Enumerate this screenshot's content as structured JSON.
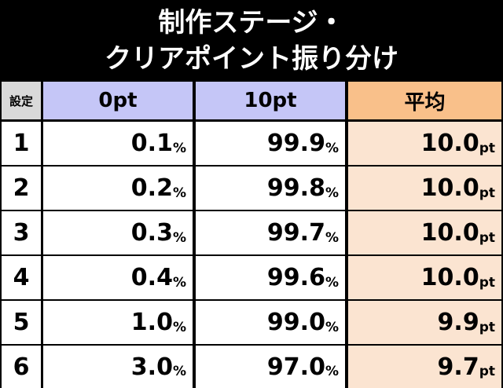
{
  "title": {
    "line1": "制作ステージ・",
    "line2": "クリアポイント振り分け"
  },
  "table": {
    "headers": {
      "setting": "設定",
      "pt0": "0pt",
      "pt10": "10pt",
      "average": "平均"
    },
    "rows": [
      {
        "setting": "1",
        "pt0": "0.1",
        "pt0_unit": "%",
        "pt10": "99.9",
        "pt10_unit": "%",
        "average": "10.0",
        "average_unit": "pt"
      },
      {
        "setting": "2",
        "pt0": "0.2",
        "pt0_unit": "%",
        "pt10": "99.8",
        "pt10_unit": "%",
        "average": "10.0",
        "average_unit": "pt"
      },
      {
        "setting": "3",
        "pt0": "0.3",
        "pt0_unit": "%",
        "pt10": "99.7",
        "pt10_unit": "%",
        "average": "10.0",
        "average_unit": "pt"
      },
      {
        "setting": "4",
        "pt0": "0.4",
        "pt0_unit": "%",
        "pt10": "99.6",
        "pt10_unit": "%",
        "average": "10.0",
        "average_unit": "pt"
      },
      {
        "setting": "5",
        "pt0": "1.0",
        "pt0_unit": "%",
        "pt10": "99.0",
        "pt10_unit": "%",
        "average": "9.9",
        "average_unit": "pt"
      },
      {
        "setting": "6",
        "pt0": "3.0",
        "pt0_unit": "%",
        "pt10": "97.0",
        "pt10_unit": "%",
        "average": "9.7",
        "average_unit": "pt"
      }
    ]
  },
  "colors": {
    "header_setting_bg": "#d9d9d9",
    "header_pt_bg": "#c5c6f7",
    "header_average_bg": "#f9c08a",
    "average_cell_bg": "#fbe4d1",
    "title_bg": "#000000"
  }
}
